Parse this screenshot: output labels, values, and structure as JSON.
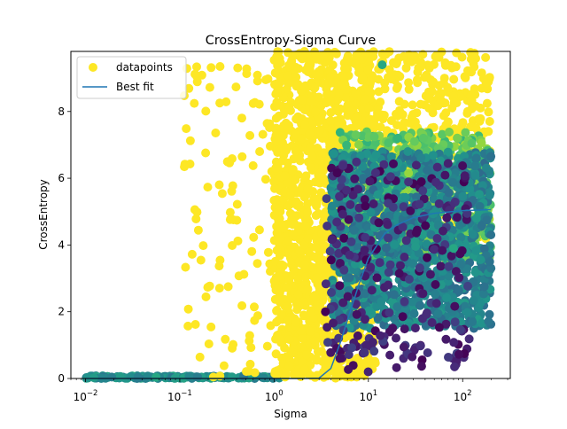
{
  "chart_data": {
    "type": "scatter",
    "title": "CrossEntropy-Sigma Curve",
    "xlabel": "Sigma",
    "ylabel": "CrossEntropy",
    "xscale": "log",
    "xlim": [
      0.007,
      320
    ],
    "ylim": [
      0,
      9.8
    ],
    "x_ticks": [
      {
        "value": 0.01,
        "base": "10",
        "exp": "−2"
      },
      {
        "value": 0.1,
        "base": "10",
        "exp": "−1"
      },
      {
        "value": 1,
        "base": "10",
        "exp": "0"
      },
      {
        "value": 10,
        "base": "10",
        "exp": "1"
      },
      {
        "value": 100,
        "base": "10",
        "exp": "2"
      }
    ],
    "y_ticks": [
      0,
      2,
      4,
      6,
      8
    ],
    "grid": false,
    "legend": {
      "position": "top-left"
    },
    "colormap": "viridis",
    "colors": {
      "datapoints": "#fde725",
      "best_fit": "#1f77b4"
    },
    "series": [
      {
        "name": "datapoints",
        "kind": "scatter",
        "clusters": [
          {
            "x_range": [
              0.01,
              1.2
            ],
            "y_range": [
              0,
              0.08
            ],
            "color_value": 0.5,
            "count": 160
          },
          {
            "x_range": [
              0.1,
              3.0
            ],
            "y_range": [
              0,
              9.5
            ],
            "color_value": 1.0,
            "count": 170
          },
          {
            "x_range": [
              1.0,
              12
            ],
            "y_range": [
              0,
              9.8
            ],
            "color_value": 1.0,
            "count": 1400
          },
          {
            "x_range": [
              12,
              200
            ],
            "y_range": [
              4,
              9.8
            ],
            "color_value": 1.0,
            "count": 420
          },
          {
            "x_range": [
              5,
              200
            ],
            "y_range": [
              3.5,
              7.4
            ],
            "color_value": 0.75,
            "count": 700
          },
          {
            "x_range": [
              4,
              200
            ],
            "y_range": [
              1.5,
              6.8
            ],
            "color_value": 0.45,
            "count": 1200
          },
          {
            "x_range": [
              3.5,
              120
            ],
            "y_range": [
              0.2,
              6.5
            ],
            "color_value": 0.1,
            "count": 260
          }
        ],
        "highlights": [
          {
            "x": 14,
            "y": 9.4,
            "color_value": 0.6
          },
          {
            "x": 9.5,
            "y": 3.55,
            "color_value": 0.0
          },
          {
            "x": 80,
            "y": 3.9,
            "color_value": 0.6
          }
        ]
      },
      {
        "name": "Best fit",
        "kind": "line",
        "x": [
          0.01,
          0.1,
          0.5,
          1.0,
          2.0,
          3.0,
          4.0,
          5.0,
          6.0,
          8.0,
          10.0,
          15.0,
          20.0,
          30.0,
          50.0,
          100.0,
          200.0
        ],
        "y": [
          0.0,
          0.0,
          0.0,
          0.0,
          0.0,
          0.01,
          0.3,
          1.05,
          1.75,
          2.85,
          3.6,
          4.35,
          4.6,
          4.82,
          4.95,
          5.03,
          5.06
        ]
      }
    ]
  }
}
